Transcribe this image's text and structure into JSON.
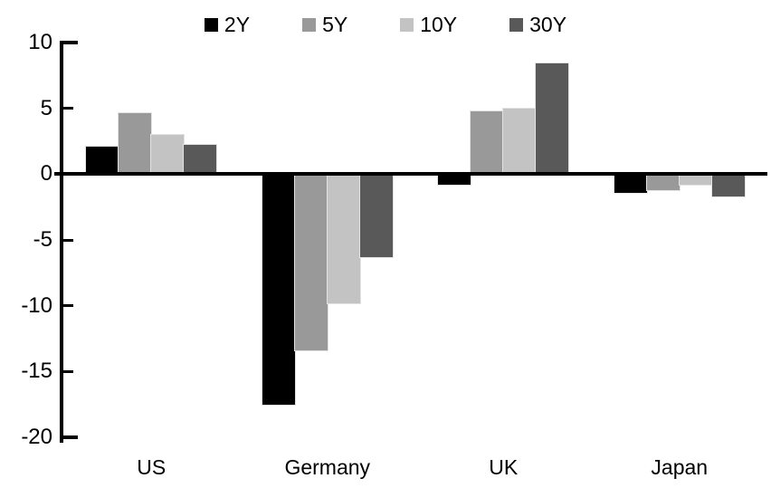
{
  "chart_data": {
    "type": "bar",
    "title": "",
    "xlabel": "",
    "ylabel": "",
    "categories": [
      "US",
      "Germany",
      "UK",
      "Japan"
    ],
    "series": [
      {
        "name": "2Y",
        "color": "#000000",
        "values": [
          2.1,
          -17.5,
          -0.8,
          -1.4
        ]
      },
      {
        "name": "5Y",
        "color": "#999999",
        "values": [
          4.6,
          -13.4,
          4.8,
          -1.2
        ]
      },
      {
        "name": "10Y",
        "color": "#c3c3c3",
        "values": [
          3.0,
          -9.8,
          5.0,
          -0.8
        ]
      },
      {
        "name": "30Y",
        "color": "#595959",
        "values": [
          2.2,
          -6.3,
          8.4,
          -1.7
        ]
      }
    ],
    "ylim": [
      -20,
      10
    ],
    "yticks": [
      10,
      5,
      0,
      -5,
      -10,
      -15,
      -20
    ],
    "grid": false,
    "legend_position": "top-center",
    "axis_color": "#000000",
    "background_color": "#ffffff"
  }
}
